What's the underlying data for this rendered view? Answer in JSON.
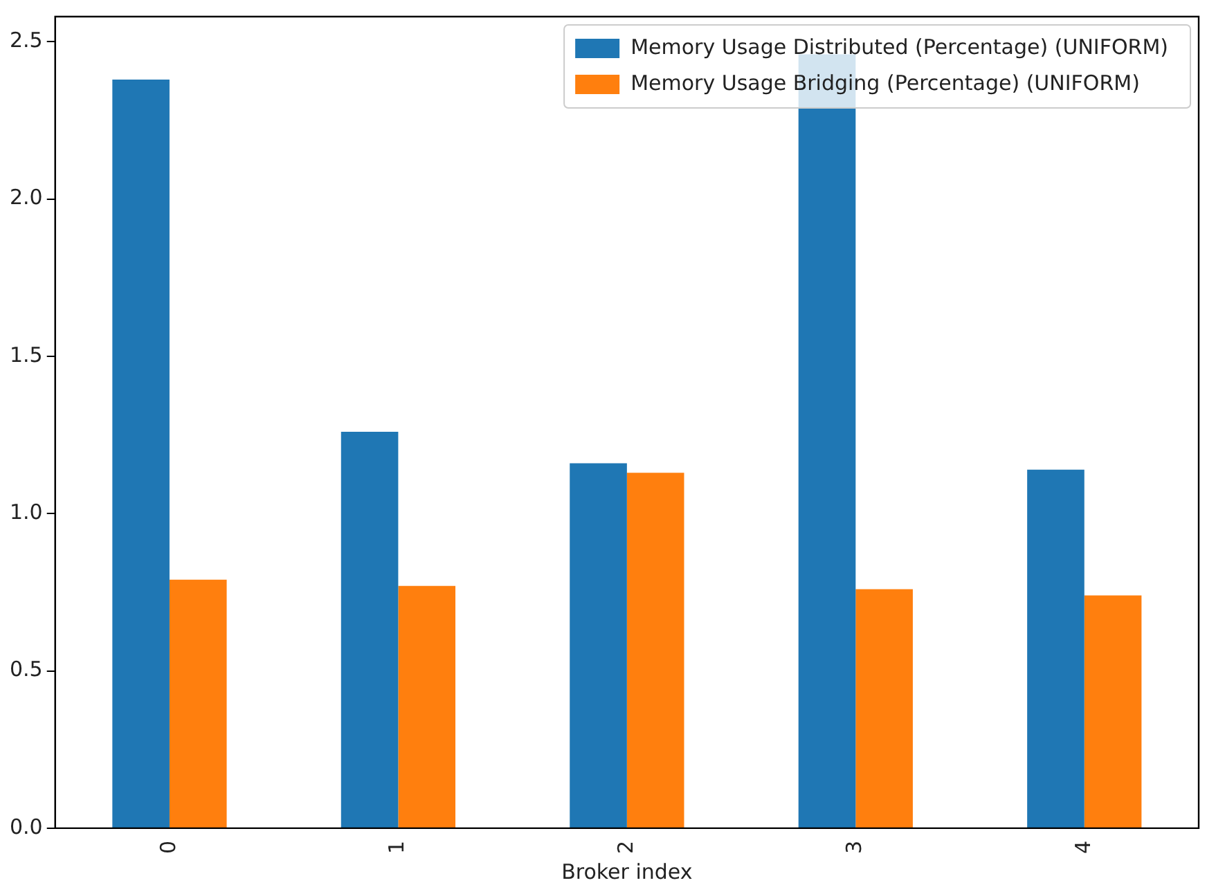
{
  "chart_data": {
    "type": "bar",
    "xlabel": "Broker index",
    "categories": [
      "0",
      "1",
      "2",
      "3",
      "4"
    ],
    "series": [
      {
        "name": "Memory Usage Distributed (Percentage) (UNIFORM)",
        "color": "#1f77b4",
        "values": [
          2.38,
          1.26,
          1.16,
          2.46,
          1.14
        ]
      },
      {
        "name": "Memory Usage Bridging (Percentage) (UNIFORM)",
        "color": "#ff7f0e",
        "values": [
          0.79,
          0.77,
          1.13,
          0.76,
          0.74
        ]
      }
    ],
    "ylim": [
      0,
      2.58
    ],
    "yticks": [
      {
        "value": 0,
        "label": "0.0"
      },
      {
        "value": 0.5,
        "label": "0.5"
      },
      {
        "value": 1,
        "label": "1.0"
      },
      {
        "value": 1.5,
        "label": "1.5"
      },
      {
        "value": 2,
        "label": "2.0"
      },
      {
        "value": 2.5,
        "label": "2.5"
      }
    ],
    "grid": false,
    "legend": "top right"
  }
}
